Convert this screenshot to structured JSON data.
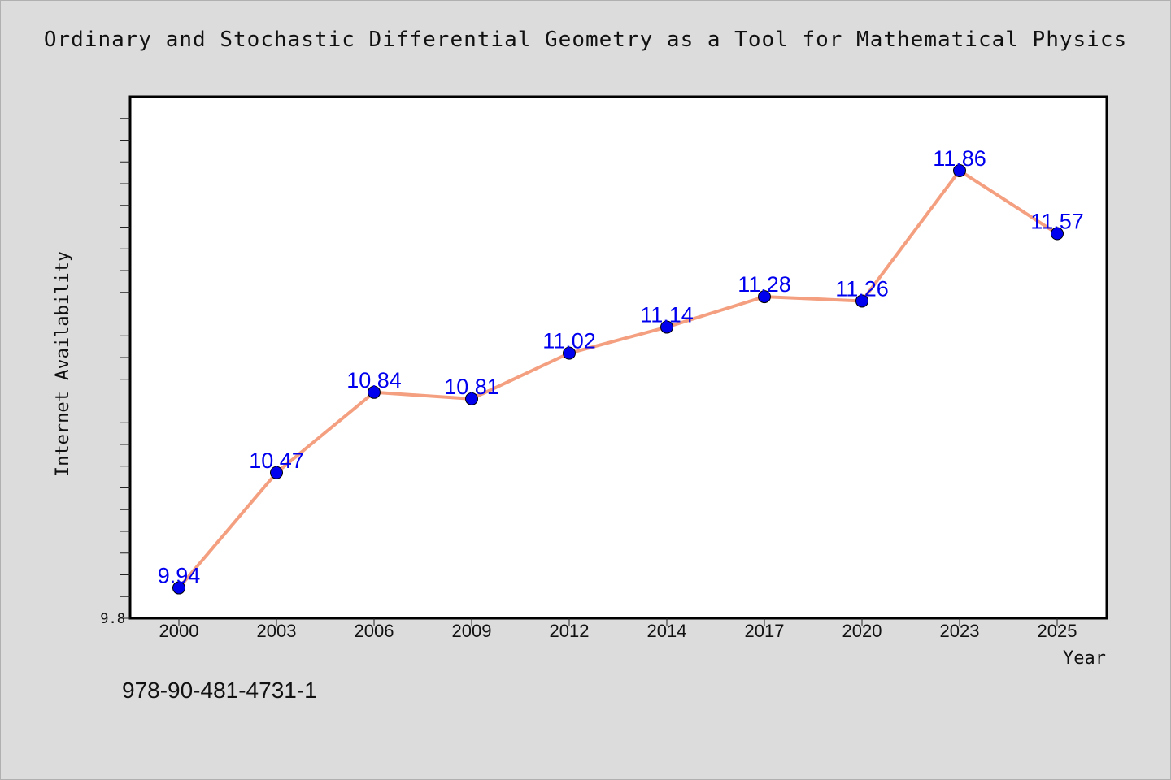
{
  "chart_data": {
    "type": "line",
    "title": "Ordinary and Stochastic Differential Geometry as a Tool for Mathematical Physics",
    "xlabel": "Year",
    "ylabel": "Internet Availability",
    "categories": [
      "2000",
      "2003",
      "2006",
      "2009",
      "2012",
      "2014",
      "2017",
      "2020",
      "2023",
      "2025"
    ],
    "series": [
      {
        "values": [
          9.94,
          10.47,
          10.84,
          10.81,
          11.02,
          11.14,
          11.28,
          11.26,
          11.86,
          11.57
        ]
      }
    ],
    "y_tick_labels": [
      "9.8"
    ],
    "ylim": [
      9.8,
      12.2
    ],
    "grid": false,
    "line_color": "#f4a080",
    "marker_color": "#0000ee",
    "label_color": "#0000ee"
  },
  "footer": {
    "isbn": "978-90-481-4731-1"
  }
}
